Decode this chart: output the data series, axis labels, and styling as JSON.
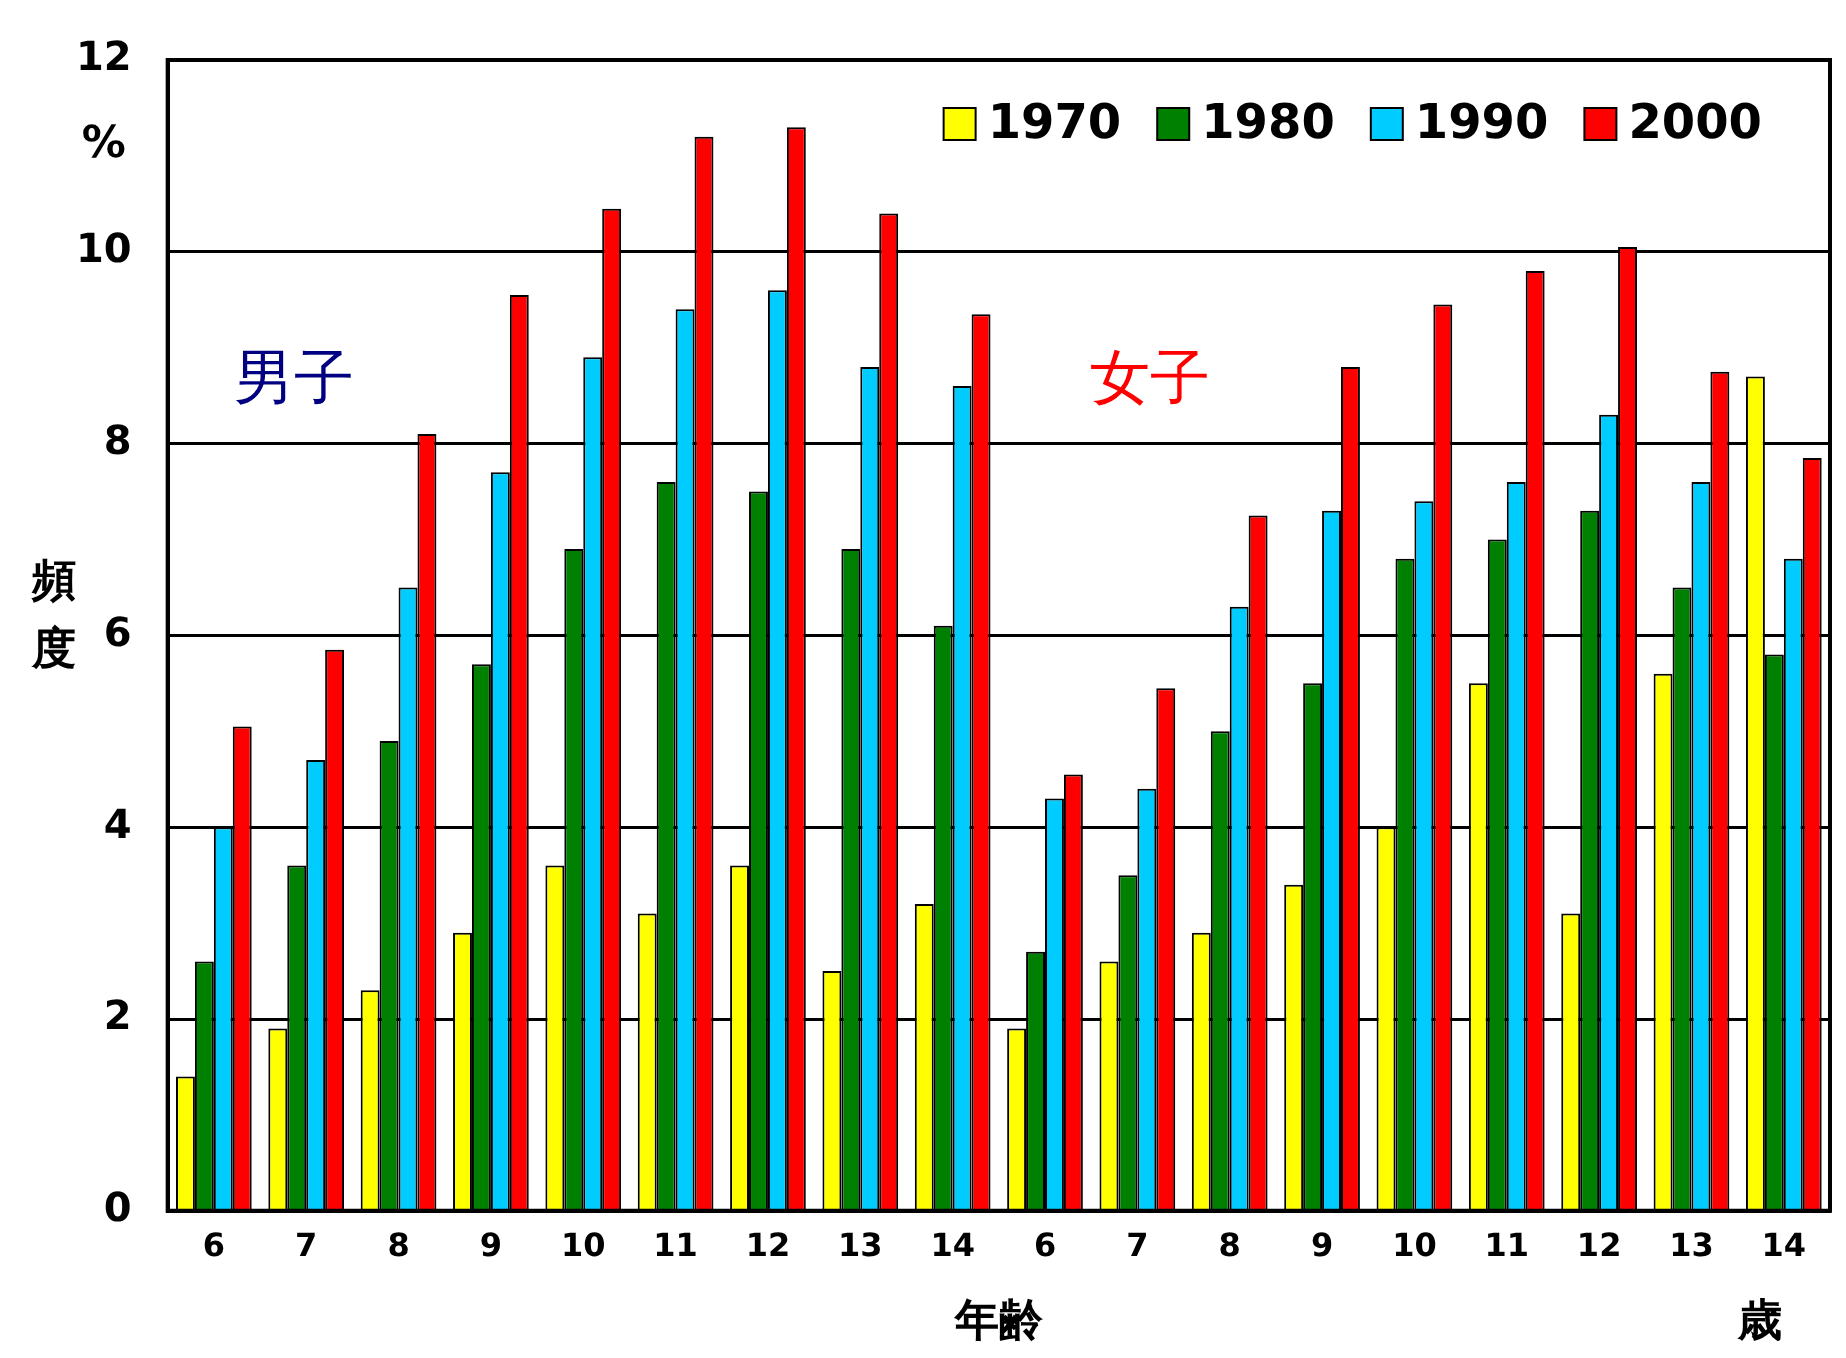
{
  "chart_data": {
    "type": "bar",
    "ylabel": "頻度",
    "xlabel": "年齢",
    "annotations": [
      "男子",
      "女子",
      "%",
      "歳"
    ],
    "categories": [
      "6",
      "7",
      "8",
      "9",
      "10",
      "11",
      "12",
      "13",
      "14",
      "6",
      "7",
      "8",
      "9",
      "10",
      "11",
      "12",
      "13",
      "14"
    ],
    "series": [
      {
        "name": "1970",
        "color": "#ffff00",
        "values": [
          1.4,
          1.9,
          2.3,
          2.9,
          3.6,
          3.1,
          3.6,
          2.5,
          3.2,
          1.9,
          2.6,
          2.9,
          3.4,
          4.0,
          5.5,
          3.1,
          5.6,
          8.7
        ]
      },
      {
        "name": "1980",
        "color": "#008000",
        "values": [
          2.6,
          3.6,
          4.9,
          5.7,
          6.9,
          7.6,
          7.5,
          6.9,
          6.1,
          2.7,
          3.5,
          5.0,
          5.5,
          6.8,
          7.0,
          7.3,
          6.5,
          5.8
        ]
      },
      {
        "name": "1990",
        "color": "#00ccff",
        "values": [
          4.0,
          4.7,
          6.5,
          7.7,
          8.9,
          9.4,
          9.6,
          8.8,
          8.6,
          4.3,
          4.4,
          6.3,
          7.3,
          7.4,
          7.6,
          8.3,
          7.6,
          6.8
        ]
      },
      {
        "name": "2000",
        "color": "#ff0000",
        "values": [
          5.05,
          5.85,
          8.1,
          9.55,
          10.45,
          11.2,
          11.3,
          10.4,
          9.35,
          4.55,
          5.45,
          7.25,
          8.8,
          9.45,
          9.8,
          10.05,
          8.75,
          7.85
        ]
      }
    ],
    "ylim": [
      0,
      12
    ],
    "yticks": [
      0,
      2,
      4,
      6,
      8,
      10,
      12
    ],
    "grid": "y",
    "legend": "top right"
  }
}
